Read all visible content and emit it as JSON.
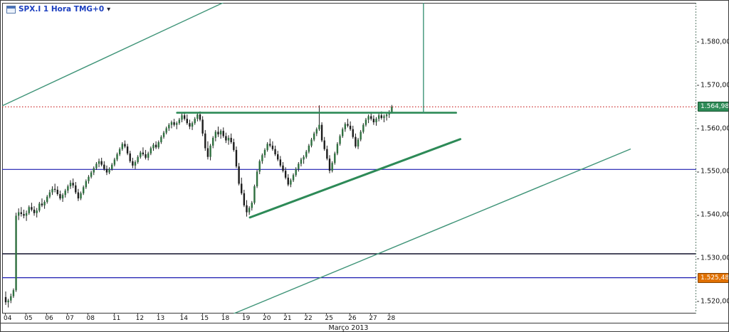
{
  "header": {
    "symbol_label": "SPX.I 1 Hora TMG+0",
    "dropdown_arrow": "▼"
  },
  "chart_data": {
    "type": "candlestick",
    "title": "SPX.I 1 Hora TMG+0",
    "ylim": [
      1517.2,
      1589.0
    ],
    "grid": "off",
    "y_ticks": [
      {
        "price": 1580,
        "label": "1.580,00"
      },
      {
        "price": 1570,
        "label": "1.570,00"
      },
      {
        "price": 1560,
        "label": "1.560,00"
      },
      {
        "price": 1550,
        "label": "1.550,00"
      },
      {
        "price": 1540,
        "label": "1.540,00"
      },
      {
        "price": 1530,
        "label": "1.530,00"
      },
      {
        "price": 1520,
        "label": "1.520,00"
      }
    ],
    "price_line_labels": [
      {
        "price": 1564.98,
        "label": "1.564,98",
        "bg": "#2e8b57",
        "border": "#14532d",
        "name": "current-price-flag"
      },
      {
        "price": 1525.48,
        "label": "1.525,48",
        "bg": "#e07000",
        "border": "#8a4500",
        "name": "alert-price-flag"
      }
    ],
    "x_axis": {
      "month_label": "Março 2013",
      "days": [
        {
          "label": "04",
          "start_index": 0
        },
        {
          "label": "05",
          "start_index": 8
        },
        {
          "label": "06",
          "start_index": 16
        },
        {
          "label": "07",
          "start_index": 24
        },
        {
          "label": "08",
          "start_index": 32
        },
        {
          "label": "11",
          "start_index": 42
        },
        {
          "label": "12",
          "start_index": 51
        },
        {
          "label": "13",
          "start_index": 59
        },
        {
          "label": "14",
          "start_index": 68
        },
        {
          "label": "15",
          "start_index": 76
        },
        {
          "label": "18",
          "start_index": 84
        },
        {
          "label": "19",
          "start_index": 92
        },
        {
          "label": "20",
          "start_index": 100
        },
        {
          "label": "21",
          "start_index": 108
        },
        {
          "label": "22",
          "start_index": 116
        },
        {
          "label": "25",
          "start_index": 124
        },
        {
          "label": "26",
          "start_index": 133
        },
        {
          "label": "27",
          "start_index": 141
        },
        {
          "label": "28",
          "start_index": 148
        }
      ]
    },
    "candle_colors": {
      "up": "#2f6f3f",
      "down": "#1c1c1c",
      "wick": "#1c1c1c"
    },
    "candles": [
      [
        1521.0,
        1522.3,
        1519.2,
        1519.8
      ],
      [
        1519.8,
        1520.6,
        1518.6,
        1520.2
      ],
      [
        1520.2,
        1521.8,
        1519.6,
        1521.2
      ],
      [
        1521.2,
        1523.0,
        1520.8,
        1522.6
      ],
      [
        1522.6,
        1540.5,
        1522.2,
        1539.8
      ],
      [
        1539.8,
        1541.5,
        1538.8,
        1540.6
      ],
      [
        1540.6,
        1541.8,
        1539.6,
        1540.2
      ],
      [
        1540.2,
        1541.2,
        1539.2,
        1539.8
      ],
      [
        1539.8,
        1541.0,
        1538.6,
        1540.4
      ],
      [
        1540.4,
        1542.2,
        1540.0,
        1541.8
      ],
      [
        1541.8,
        1542.8,
        1540.8,
        1541.2
      ],
      [
        1541.2,
        1542.0,
        1539.8,
        1540.4
      ],
      [
        1540.4,
        1541.6,
        1539.4,
        1541.0
      ],
      [
        1541.0,
        1543.0,
        1540.6,
        1542.6
      ],
      [
        1542.6,
        1543.8,
        1541.8,
        1542.2
      ],
      [
        1542.2,
        1543.4,
        1541.4,
        1543.0
      ],
      [
        1543.0,
        1544.6,
        1542.6,
        1544.2
      ],
      [
        1544.2,
        1545.8,
        1543.8,
        1545.2
      ],
      [
        1545.2,
        1546.6,
        1544.6,
        1546.0
      ],
      [
        1546.0,
        1547.2,
        1545.2,
        1545.8
      ],
      [
        1545.8,
        1546.6,
        1544.4,
        1544.8
      ],
      [
        1544.8,
        1545.6,
        1543.4,
        1543.8
      ],
      [
        1543.8,
        1545.0,
        1543.0,
        1544.6
      ],
      [
        1544.6,
        1546.0,
        1544.0,
        1545.6
      ],
      [
        1545.6,
        1547.0,
        1545.0,
        1546.6
      ],
      [
        1546.6,
        1548.0,
        1546.0,
        1547.4
      ],
      [
        1547.4,
        1548.4,
        1546.2,
        1546.8
      ],
      [
        1546.8,
        1547.6,
        1544.8,
        1545.2
      ],
      [
        1545.2,
        1546.0,
        1543.2,
        1543.8
      ],
      [
        1543.8,
        1545.4,
        1543.4,
        1545.0
      ],
      [
        1545.0,
        1546.8,
        1544.6,
        1546.4
      ],
      [
        1546.4,
        1548.2,
        1546.0,
        1547.8
      ],
      [
        1547.8,
        1549.2,
        1547.2,
        1548.8
      ],
      [
        1548.8,
        1550.2,
        1548.4,
        1549.8
      ],
      [
        1549.8,
        1551.2,
        1549.2,
        1550.8
      ],
      [
        1550.8,
        1552.2,
        1550.4,
        1551.8
      ],
      [
        1551.8,
        1553.0,
        1551.0,
        1552.4
      ],
      [
        1552.4,
        1553.2,
        1551.2,
        1551.6
      ],
      [
        1551.6,
        1552.4,
        1550.2,
        1550.6
      ],
      [
        1550.6,
        1551.4,
        1549.2,
        1549.8
      ],
      [
        1549.8,
        1551.0,
        1549.4,
        1550.6
      ],
      [
        1550.6,
        1552.0,
        1550.2,
        1551.6
      ],
      [
        1551.6,
        1553.2,
        1551.2,
        1552.8
      ],
      [
        1552.8,
        1554.4,
        1552.4,
        1554.0
      ],
      [
        1554.0,
        1555.6,
        1553.6,
        1555.2
      ],
      [
        1555.2,
        1556.8,
        1554.8,
        1556.4
      ],
      [
        1556.4,
        1557.2,
        1555.4,
        1555.8
      ],
      [
        1555.8,
        1556.4,
        1553.8,
        1554.2
      ],
      [
        1554.2,
        1554.8,
        1552.0,
        1552.4
      ],
      [
        1552.4,
        1553.2,
        1550.8,
        1551.4
      ],
      [
        1551.4,
        1552.6,
        1550.6,
        1552.2
      ],
      [
        1552.2,
        1553.8,
        1551.8,
        1553.4
      ],
      [
        1553.4,
        1554.8,
        1553.0,
        1554.4
      ],
      [
        1554.4,
        1555.6,
        1553.6,
        1554.0
      ],
      [
        1554.0,
        1555.0,
        1552.8,
        1553.2
      ],
      [
        1553.2,
        1554.6,
        1552.6,
        1554.2
      ],
      [
        1554.2,
        1555.8,
        1553.8,
        1555.4
      ],
      [
        1555.4,
        1556.6,
        1554.8,
        1556.2
      ],
      [
        1556.2,
        1557.0,
        1555.2,
        1555.6
      ],
      [
        1555.6,
        1557.2,
        1555.2,
        1556.8
      ],
      [
        1556.8,
        1558.4,
        1556.4,
        1558.0
      ],
      [
        1558.0,
        1559.4,
        1557.6,
        1559.0
      ],
      [
        1559.0,
        1560.4,
        1558.6,
        1560.0
      ],
      [
        1560.0,
        1561.2,
        1559.4,
        1560.8
      ],
      [
        1560.8,
        1561.8,
        1560.0,
        1561.4
      ],
      [
        1561.4,
        1562.2,
        1560.4,
        1560.8
      ],
      [
        1560.8,
        1561.6,
        1559.8,
        1561.2
      ],
      [
        1561.2,
        1562.4,
        1560.8,
        1562.0
      ],
      [
        1562.0,
        1563.4,
        1561.4,
        1563.0
      ],
      [
        1563.0,
        1563.8,
        1561.8,
        1562.2
      ],
      [
        1562.2,
        1563.2,
        1560.8,
        1561.2
      ],
      [
        1561.2,
        1562.0,
        1559.8,
        1560.4
      ],
      [
        1560.4,
        1561.6,
        1559.6,
        1561.2
      ],
      [
        1561.2,
        1562.6,
        1560.8,
        1562.2
      ],
      [
        1562.2,
        1563.6,
        1561.6,
        1563.2
      ],
      [
        1563.2,
        1563.9,
        1561.6,
        1562.0
      ],
      [
        1562.0,
        1562.8,
        1558.2,
        1558.8
      ],
      [
        1558.8,
        1559.6,
        1554.8,
        1555.4
      ],
      [
        1555.4,
        1557.0,
        1552.8,
        1553.4
      ],
      [
        1553.4,
        1556.4,
        1552.6,
        1556.0
      ],
      [
        1556.0,
        1558.2,
        1555.4,
        1557.8
      ],
      [
        1557.8,
        1559.6,
        1557.0,
        1559.2
      ],
      [
        1559.2,
        1560.4,
        1558.0,
        1558.6
      ],
      [
        1558.6,
        1559.8,
        1557.6,
        1559.4
      ],
      [
        1559.4,
        1560.2,
        1557.8,
        1558.2
      ],
      [
        1558.2,
        1559.0,
        1556.6,
        1557.2
      ],
      [
        1557.2,
        1558.4,
        1556.2,
        1557.8
      ],
      [
        1557.8,
        1558.8,
        1556.4,
        1556.8
      ],
      [
        1556.8,
        1557.6,
        1554.6,
        1555.0
      ],
      [
        1555.0,
        1555.8,
        1550.8,
        1551.2
      ],
      [
        1551.2,
        1552.0,
        1546.8,
        1547.2
      ],
      [
        1547.2,
        1548.6,
        1544.6,
        1545.0
      ],
      [
        1545.0,
        1545.8,
        1541.8,
        1542.2
      ],
      [
        1542.2,
        1543.4,
        1539.6,
        1540.6
      ],
      [
        1540.6,
        1542.0,
        1540.0,
        1541.6
      ],
      [
        1541.6,
        1543.2,
        1541.0,
        1542.8
      ],
      [
        1542.8,
        1547.0,
        1542.4,
        1546.6
      ],
      [
        1546.6,
        1550.4,
        1546.2,
        1550.0
      ],
      [
        1550.0,
        1552.8,
        1549.4,
        1552.4
      ],
      [
        1552.4,
        1554.2,
        1551.8,
        1553.8
      ],
      [
        1553.8,
        1555.4,
        1553.2,
        1555.0
      ],
      [
        1555.0,
        1556.8,
        1554.6,
        1556.4
      ],
      [
        1556.4,
        1557.6,
        1555.6,
        1556.0
      ],
      [
        1556.0,
        1557.0,
        1554.8,
        1555.2
      ],
      [
        1555.2,
        1556.0,
        1553.6,
        1554.0
      ],
      [
        1554.0,
        1554.8,
        1552.4,
        1552.8
      ],
      [
        1552.8,
        1553.6,
        1551.0,
        1551.4
      ],
      [
        1551.4,
        1552.2,
        1549.8,
        1550.2
      ],
      [
        1550.2,
        1551.0,
        1548.2,
        1548.6
      ],
      [
        1548.6,
        1549.4,
        1546.6,
        1547.0
      ],
      [
        1547.0,
        1548.4,
        1546.4,
        1548.0
      ],
      [
        1548.0,
        1549.6,
        1547.6,
        1549.2
      ],
      [
        1549.2,
        1551.0,
        1548.8,
        1550.6
      ],
      [
        1550.6,
        1552.2,
        1550.0,
        1551.8
      ],
      [
        1551.8,
        1553.2,
        1551.2,
        1552.8
      ],
      [
        1552.8,
        1553.8,
        1551.8,
        1553.4
      ],
      [
        1553.4,
        1555.0,
        1553.0,
        1554.6
      ],
      [
        1554.6,
        1556.4,
        1554.2,
        1556.0
      ],
      [
        1556.0,
        1557.8,
        1555.6,
        1557.4
      ],
      [
        1557.4,
        1559.2,
        1557.0,
        1558.8
      ],
      [
        1558.8,
        1560.2,
        1558.2,
        1559.8
      ],
      [
        1559.8,
        1565.3,
        1559.4,
        1560.8
      ],
      [
        1560.8,
        1561.4,
        1556.8,
        1557.2
      ],
      [
        1557.2,
        1558.0,
        1554.8,
        1555.2
      ],
      [
        1555.2,
        1556.0,
        1552.6,
        1553.0
      ],
      [
        1553.0,
        1553.8,
        1549.6,
        1550.2
      ],
      [
        1550.2,
        1552.4,
        1549.8,
        1552.0
      ],
      [
        1552.0,
        1554.6,
        1551.6,
        1554.2
      ],
      [
        1554.2,
        1556.8,
        1553.8,
        1556.4
      ],
      [
        1556.4,
        1558.6,
        1556.0,
        1558.2
      ],
      [
        1558.2,
        1560.2,
        1557.8,
        1559.8
      ],
      [
        1559.8,
        1561.4,
        1559.2,
        1561.0
      ],
      [
        1561.0,
        1562.2,
        1560.2,
        1560.6
      ],
      [
        1560.6,
        1561.6,
        1559.4,
        1559.8
      ],
      [
        1559.8,
        1560.6,
        1557.6,
        1558.0
      ],
      [
        1558.0,
        1558.8,
        1555.4,
        1555.8
      ],
      [
        1555.8,
        1557.8,
        1555.2,
        1557.4
      ],
      [
        1557.4,
        1559.6,
        1557.0,
        1559.2
      ],
      [
        1559.2,
        1561.2,
        1558.8,
        1560.8
      ],
      [
        1560.8,
        1562.4,
        1560.4,
        1562.0
      ],
      [
        1562.0,
        1563.2,
        1561.2,
        1562.8
      ],
      [
        1562.8,
        1563.8,
        1561.8,
        1562.2
      ],
      [
        1562.2,
        1563.0,
        1560.8,
        1561.4
      ],
      [
        1561.4,
        1562.6,
        1560.6,
        1562.2
      ],
      [
        1562.2,
        1563.4,
        1561.6,
        1563.0
      ],
      [
        1563.0,
        1563.9,
        1562.0,
        1562.4
      ],
      [
        1562.4,
        1563.2,
        1561.4,
        1562.8
      ],
      [
        1562.8,
        1563.6,
        1561.8,
        1563.2
      ],
      [
        1563.2,
        1564.2,
        1562.4,
        1563.8
      ],
      [
        1563.8,
        1565.4,
        1563.4,
        1564.98
      ]
    ],
    "annotations": {
      "hlines": [
        {
          "price": 1564.98,
          "color": "#c00000",
          "style": "dotted",
          "width": 1,
          "name": "current-price-line"
        },
        {
          "price": 1550.5,
          "color": "#1c1cb0",
          "style": "solid",
          "width": 1.2,
          "name": "horizontal-level-1550"
        },
        {
          "price": 1531.0,
          "color": "#10102a",
          "style": "solid",
          "width": 1.6,
          "name": "horizontal-level-1531"
        },
        {
          "price": 1525.48,
          "color": "#1c1cb0",
          "style": "solid",
          "width": 1.2,
          "name": "horizontal-level-1525"
        }
      ],
      "trendlines": [
        {
          "x1": 0.0,
          "price1": 1565.2,
          "x2": 0.318,
          "price2": 1589.0,
          "color": "#3f9478",
          "width": 1.4,
          "name": "upper-channel-trendline"
        },
        {
          "x1": 0.252,
          "price1": 1563.6,
          "x2": 0.654,
          "price2": 1563.6,
          "color": "#2d8a57",
          "width": 2.6,
          "name": "resistance-line"
        },
        {
          "x1": 0.357,
          "price1": 1539.4,
          "x2": 0.66,
          "price2": 1557.5,
          "color": "#2d8a57",
          "width": 3,
          "name": "support-trendline"
        },
        {
          "x1": 0.334,
          "price1": 1517.2,
          "x2": 0.905,
          "price2": 1555.2,
          "color": "#3f9478",
          "width": 1.4,
          "name": "lower-channel-trendline"
        }
      ],
      "vlines": [
        {
          "x": 0.607,
          "price1": 1589.0,
          "price2": 1563.6,
          "color": "#3f9478",
          "width": 1.4,
          "style": "solid",
          "name": "vertical-marker-line"
        },
        {
          "x": 0.9995,
          "color": "#5d7d6d",
          "width": 1,
          "style": "dashed",
          "name": "axis-separator-line"
        }
      ]
    }
  }
}
